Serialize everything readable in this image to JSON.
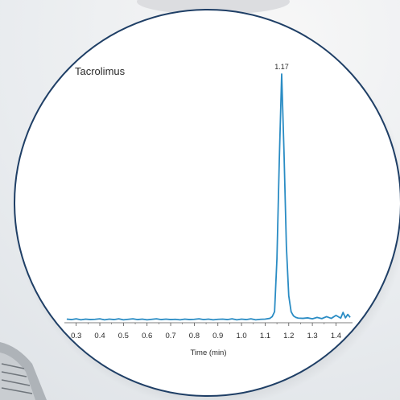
{
  "chart_data": {
    "type": "line",
    "title": "Tacrolimus",
    "xlabel": "Time (min)",
    "ylabel": "",
    "xlim": [
      0.25,
      1.47
    ],
    "ylim": [
      0,
      100
    ],
    "x_ticks": [
      0.3,
      0.4,
      0.5,
      0.6,
      0.7,
      0.8,
      0.9,
      1.0,
      1.1,
      1.2,
      1.3,
      1.4
    ],
    "x_tick_labels": [
      "0.3",
      "0.4",
      "0.5",
      "0.6",
      "0.7",
      "0.8",
      "0.9",
      "1.0",
      "1.1",
      "1.2",
      "1.3",
      "1.4"
    ],
    "grid": false,
    "annotations": [
      {
        "x": 1.17,
        "y": 100,
        "text": "1.17"
      }
    ],
    "series": [
      {
        "color": "#2a8cc4",
        "x": [
          0.26,
          0.28,
          0.3,
          0.32,
          0.34,
          0.36,
          0.38,
          0.4,
          0.42,
          0.44,
          0.46,
          0.48,
          0.5,
          0.52,
          0.54,
          0.56,
          0.58,
          0.6,
          0.62,
          0.64,
          0.66,
          0.68,
          0.7,
          0.72,
          0.74,
          0.76,
          0.78,
          0.8,
          0.82,
          0.84,
          0.86,
          0.88,
          0.9,
          0.92,
          0.94,
          0.96,
          0.98,
          1.0,
          1.02,
          1.04,
          1.06,
          1.08,
          1.1,
          1.12,
          1.13,
          1.14,
          1.15,
          1.16,
          1.17,
          1.18,
          1.19,
          1.2,
          1.21,
          1.22,
          1.23,
          1.24,
          1.26,
          1.28,
          1.3,
          1.32,
          1.34,
          1.36,
          1.38,
          1.4,
          1.42,
          1.43,
          1.44,
          1.45,
          1.46
        ],
        "y": [
          0.5,
          0.3,
          0.6,
          0.2,
          0.5,
          0.3,
          0.4,
          0.6,
          0.2,
          0.5,
          0.3,
          0.6,
          0.2,
          0.4,
          0.6,
          0.3,
          0.5,
          0.2,
          0.4,
          0.6,
          0.3,
          0.5,
          0.3,
          0.4,
          0.2,
          0.5,
          0.3,
          0.4,
          0.6,
          0.3,
          0.5,
          0.2,
          0.4,
          0.5,
          0.3,
          0.6,
          0.2,
          0.5,
          0.3,
          0.6,
          0.2,
          0.4,
          0.5,
          0.8,
          1.5,
          3.5,
          25,
          65,
          100,
          68,
          30,
          10,
          3.5,
          1.8,
          1.2,
          0.9,
          0.8,
          1.0,
          0.6,
          1.2,
          0.7,
          1.5,
          0.8,
          2.0,
          0.9,
          3.2,
          1.0,
          2.4,
          1.2
        ]
      }
    ]
  }
}
